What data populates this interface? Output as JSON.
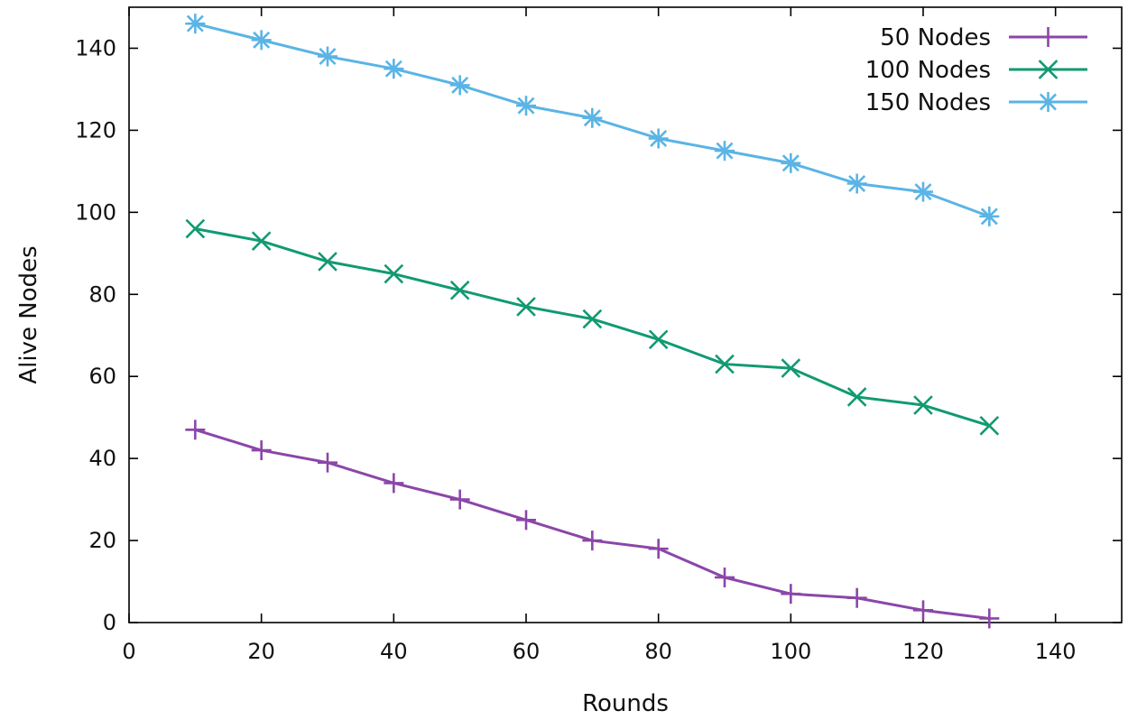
{
  "chart_data": {
    "type": "line",
    "title": "",
    "xlabel": "Rounds",
    "ylabel": "Alive Nodes",
    "xlim": [
      0,
      150
    ],
    "ylim": [
      0,
      150
    ],
    "xticks": [
      0,
      20,
      40,
      60,
      80,
      100,
      120,
      140
    ],
    "yticks": [
      0,
      20,
      40,
      60,
      80,
      100,
      120,
      140
    ],
    "grid": false,
    "legend_position": "top-right",
    "x": [
      10,
      20,
      30,
      40,
      50,
      60,
      70,
      80,
      90,
      100,
      110,
      120,
      130
    ],
    "series": [
      {
        "name": "50 Nodes",
        "color": "#8b46a8",
        "marker": "plus",
        "values": [
          47,
          42,
          39,
          34,
          30,
          25,
          20,
          18,
          11,
          7,
          6,
          3,
          1
        ]
      },
      {
        "name": "100 Nodes",
        "color": "#119a72",
        "marker": "cross",
        "values": [
          96,
          93,
          88,
          85,
          81,
          77,
          74,
          69,
          63,
          62,
          55,
          53,
          48
        ]
      },
      {
        "name": "150 Nodes",
        "color": "#5ab4e5",
        "marker": "star",
        "values": [
          146,
          142,
          138,
          135,
          131,
          126,
          123,
          118,
          115,
          112,
          107,
          105,
          99
        ]
      }
    ]
  }
}
